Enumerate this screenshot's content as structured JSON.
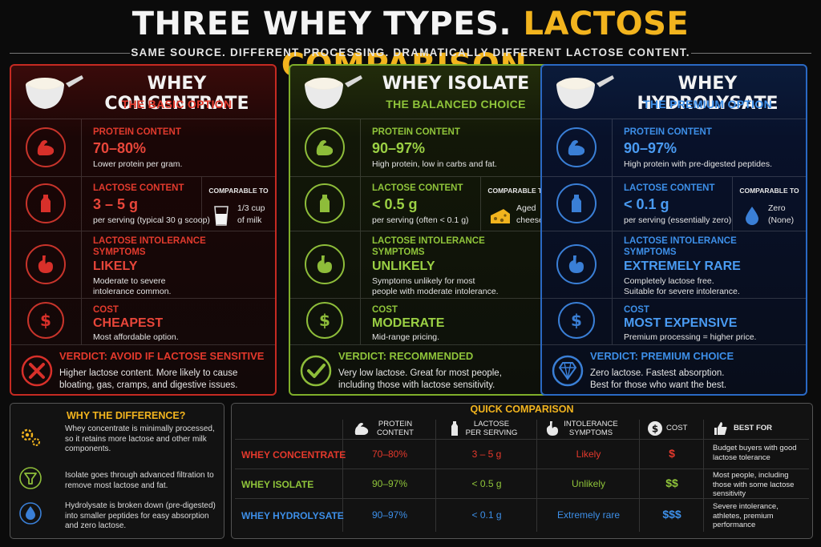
{
  "title": {
    "part1": "THREE WHEY TYPES.",
    "part2": "LACTOSE COMPARISON."
  },
  "subtitle": "SAME SOURCE. DIFFERENT PROCESSING. DRAMATICALLY DIFFERENT LACTOSE CONTENT.",
  "colors": {
    "red": "#e4392c",
    "green": "#8fc43a",
    "blue": "#3d8fe8",
    "gold": "#f2b41e"
  },
  "cards": [
    {
      "name": "WHEY CONCENTRATE",
      "subtitle": "THE BASIC OPTION",
      "protein": {
        "label": "PROTEIN CONTENT",
        "value": "70–80%",
        "desc": "Lower protein per gram."
      },
      "lactose": {
        "label": "LACTOSE CONTENT",
        "value": "3 – 5 g",
        "desc": "per serving (typical 30 g scoop)",
        "comparable_label": "COMPARABLE TO",
        "comparable_value_1": "1/3 cup",
        "comparable_value_2": "of milk",
        "comparable_icon": "milk-glass-icon"
      },
      "symptoms": {
        "label_1": "LACTOSE INTOLERANCE",
        "label_2": "SYMPTOMS",
        "value": "LIKELY",
        "desc_1": "Moderate to severe",
        "desc_2": "intolerance common."
      },
      "cost": {
        "label": "COST",
        "value": "CHEAPEST",
        "desc": "Most affordable option."
      },
      "verdict": {
        "label": "VERDICT: AVOID IF LACTOSE SENSITIVE",
        "text_1": "Higher lactose content. More likely to cause",
        "text_2": "bloating, gas, cramps, and digestive issues.",
        "icon": "x-icon"
      }
    },
    {
      "name": "WHEY ISOLATE",
      "subtitle": "THE BALANCED CHOICE",
      "protein": {
        "label": "PROTEIN CONTENT",
        "value": "90–97%",
        "desc": "High protein, low in carbs and fat."
      },
      "lactose": {
        "label": "LACTOSE CONTENT",
        "value": "< 0.5 g",
        "desc": "per serving (often < 0.1 g)",
        "comparable_label": "COMPARABLE TO",
        "comparable_value_1": "Aged",
        "comparable_value_2": "cheese",
        "comparable_icon": "cheese-icon"
      },
      "symptoms": {
        "label_1": "LACTOSE INTOLERANCE",
        "label_2": "SYMPTOMS",
        "value": "UNLIKELY",
        "desc_1": "Symptoms unlikely for most",
        "desc_2": "people with moderate intolerance."
      },
      "cost": {
        "label": "COST",
        "value": "MODERATE",
        "desc": "Mid-range pricing."
      },
      "verdict": {
        "label": "VERDICT: RECOMMENDED",
        "text_1": "Very low lactose. Great for most people,",
        "text_2": "including those with lactose sensitivity.",
        "icon": "check-icon"
      }
    },
    {
      "name": "WHEY HYDROLYSATE",
      "subtitle": "THE PREMIUM OPTION",
      "protein": {
        "label": "PROTEIN CONTENT",
        "value": "90–97%",
        "desc": "High protein with pre-digested peptides."
      },
      "lactose": {
        "label": "LACTOSE CONTENT",
        "value": "< 0.1 g",
        "desc": "per serving (essentially zero)",
        "comparable_label": "COMPARABLE TO",
        "comparable_value_1": "Zero",
        "comparable_value_2": "(None)",
        "comparable_icon": "water-drop-icon"
      },
      "symptoms": {
        "label_1": "LACTOSE INTOLERANCE",
        "label_2": "SYMPTOMS",
        "value": "EXTREMELY RARE",
        "desc_1": "Completely lactose free.",
        "desc_2": "Suitable for severe intolerance."
      },
      "cost": {
        "label": "COST",
        "value": "MOST EXPENSIVE",
        "desc": "Premium processing = higher price."
      },
      "verdict": {
        "label": "VERDICT: PREMIUM CHOICE",
        "text_1": "Zero lactose. Fastest absorption.",
        "text_2": "Best for those who want the best.",
        "icon": "diamond-icon"
      }
    }
  ],
  "why": {
    "title": "WHY THE DIFFERENCE?",
    "items": [
      {
        "text": "Whey concentrate is minimally processed, so it retains more lactose and other milk components.",
        "icon": "gears-icon"
      },
      {
        "text": "Isolate goes through advanced filtration to remove most lactose and fat.",
        "icon": "filter-icon"
      },
      {
        "text": "Hydrolysate is broken down (pre-digested) into smaller peptides for easy absorption and zero lactose.",
        "icon": "drop-icon"
      }
    ]
  },
  "quick": {
    "title": "QUICK COMPARISON",
    "headers": {
      "protein_1": "PROTEIN",
      "protein_2": "CONTENT",
      "lactose_1": "LACTOSE",
      "lactose_2": "PER SERVING",
      "symptoms_1": "INTOLERANCE",
      "symptoms_2": "SYMPTOMS",
      "cost": "COST",
      "best": "BEST FOR"
    },
    "rows": [
      {
        "name": "WHEY CONCENTRATE",
        "protein": "70–80%",
        "lactose": "3 – 5 g",
        "symptoms": "Likely",
        "cost": "$",
        "best": "Budget buyers with good lactose tolerance"
      },
      {
        "name": "WHEY ISOLATE",
        "protein": "90–97%",
        "lactose": "< 0.5 g",
        "symptoms": "Unlikely",
        "cost": "$$",
        "best": "Most people, including those with some lactose sensitivity"
      },
      {
        "name": "WHEY HYDROLYSATE",
        "protein": "90–97%",
        "lactose": "< 0.1 g",
        "symptoms": "Extremely rare",
        "cost": "$$$",
        "best": "Severe intolerance, athletes, premium performance"
      }
    ]
  }
}
